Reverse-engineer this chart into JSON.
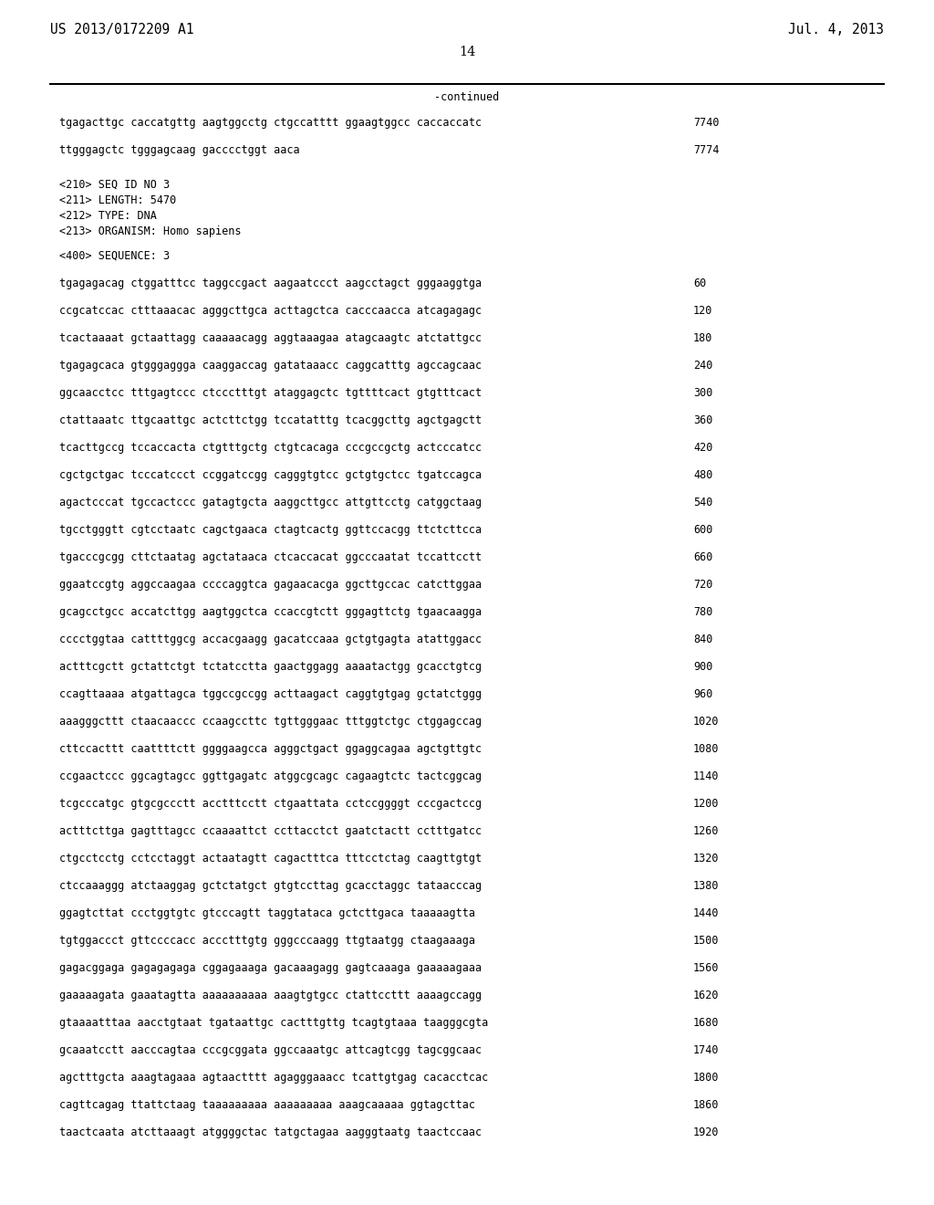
{
  "header_left": "US 2013/0172209 A1",
  "header_right": "Jul. 4, 2013",
  "page_number": "14",
  "continued_label": "-continued",
  "background_color": "#ffffff",
  "text_color": "#000000",
  "font_size_header": 10.5,
  "font_size_body": 8.5,
  "font_size_page": 10.5,
  "line1_seq": "tgagacttgc caccatgttg aagtggcctg ctgccatttt ggaagtggcc caccaccatc",
  "line1_num": "7740",
  "line2_seq": "ttgggagctc tgggagcaag gacccctggt aaca",
  "line2_num": "7774",
  "meta_lines": [
    "<210> SEQ ID NO 3",
    "<211> LENGTH: 5470",
    "<212> TYPE: DNA",
    "<213> ORGANISM: Homo sapiens"
  ],
  "seq_label": "<400> SEQUENCE: 3",
  "sequence_lines": [
    [
      "tgagagacag ctggatttcc taggccgact aagaatccct aagcctagct gggaaggtga",
      "60"
    ],
    [
      "ccgcatccac ctttaaacac agggcttgca acttagctca cacccaacca atcagagagc",
      "120"
    ],
    [
      "tcactaaaat gctaattagg caaaaacagg aggtaaagaa atagcaagtc atctattgcc",
      "180"
    ],
    [
      "tgagagcaca gtgggaggga caaggaccag gatataaacc caggcatttg agccagcaac",
      "240"
    ],
    [
      "ggcaacctcc tttgagtccc ctccctttgt ataggagctc tgttttcact gtgtttcact",
      "300"
    ],
    [
      "ctattaaatc ttgcaattgc actcttctgg tccatatttg tcacggcttg agctgagctt",
      "360"
    ],
    [
      "tcacttgccg tccaccacta ctgtttgctg ctgtcacaga cccgccgctg actcccatcc",
      "420"
    ],
    [
      "cgctgctgac tcccatccct ccggatccgg cagggtgtcc gctgtgctcc tgatccagca",
      "480"
    ],
    [
      "agactcccat tgccactccc gatagtgcta aaggcttgcc attgttcctg catggctaag",
      "540"
    ],
    [
      "tgcctgggtt cgtcctaatc cagctgaaca ctagtcactg ggttccacgg ttctcttcca",
      "600"
    ],
    [
      "tgacccgcgg cttctaatag agctataaca ctcaccacat ggcccaatat tccattcctt",
      "660"
    ],
    [
      "ggaatccgtg aggccaagaa ccccaggtca gagaacacga ggcttgccac catcttggaa",
      "720"
    ],
    [
      "gcagcctgcc accatcttgg aagtggctca ccaccgtctt gggagttctg tgaacaagga",
      "780"
    ],
    [
      "cccctggtaa cattttggcg accacgaagg gacatccaaa gctgtgagta atattggacc",
      "840"
    ],
    [
      "actttcgctt gctattctgt tctatcctta gaactggagg aaaatactgg gcacctgtcg",
      "900"
    ],
    [
      "ccagttaaaa atgattagca tggccgccgg acttaagact caggtgtgag gctatctggg",
      "960"
    ],
    [
      "aaagggcttt ctaacaaccc ccaagccttc tgttgggaac tttggtctgc ctggagccag",
      "1020"
    ],
    [
      "cttccacttt caattttctt ggggaagcca agggctgact ggaggcagaa agctgttgtc",
      "1080"
    ],
    [
      "ccgaactccc ggcagtagcc ggttgagatc atggcgcagc cagaagtctc tactcggcag",
      "1140"
    ],
    [
      "tcgcccatgc gtgcgccctt acctttcctt ctgaattata cctccggggt cccgactccg",
      "1200"
    ],
    [
      "actttcttga gagtttagcc ccaaaattct ccttacctct gaatctactt cctttgatcc",
      "1260"
    ],
    [
      "ctgcctcctg cctcctaggt actaatagtt cagactttca tttcctctag caagttgtgt",
      "1320"
    ],
    [
      "ctccaaaggg atctaaggag gctctatgct gtgtccttag gcacctaggc tataacccag",
      "1380"
    ],
    [
      "ggagtcttat ccctggtgtc gtcccagtt taggtataca gctcttgaca taaaaagtta",
      "1440"
    ],
    [
      "tgtggaccct gttccccacc accctttgtg gggcccaagg ttgtaatgg ctaagaaaga",
      "1500"
    ],
    [
      "gagacggaga gagagagaga cggagaaaga gacaaagagg gagtcaaaga gaaaaagaaa",
      "1560"
    ],
    [
      "gaaaaagata gaaatagtta aaaaaaaaaa aaagtgtgcc ctattccttt aaaagccagg",
      "1620"
    ],
    [
      "gtaaaatttaa aacctgtaat tgataattgc cactttgttg tcagtgtaaa taagggcgta",
      "1680"
    ],
    [
      "gcaaatcctt aacccagtaa cccgcggata ggccaaatgc attcagtcgg tagcggcaac",
      "1740"
    ],
    [
      "agctttgcta aaagtagaaa agtaactttt agagggaaacc tcattgtgag cacacctcac",
      "1800"
    ],
    [
      "cagttcagag ttattctaag taaaaaaaaa aaaaaaaaa aaagcaaaaa ggtagcttac",
      "1860"
    ],
    [
      "taactcaata atcttaaagt atggggctac tatgctagaa aagggtaatg taactccaac",
      "1920"
    ]
  ]
}
